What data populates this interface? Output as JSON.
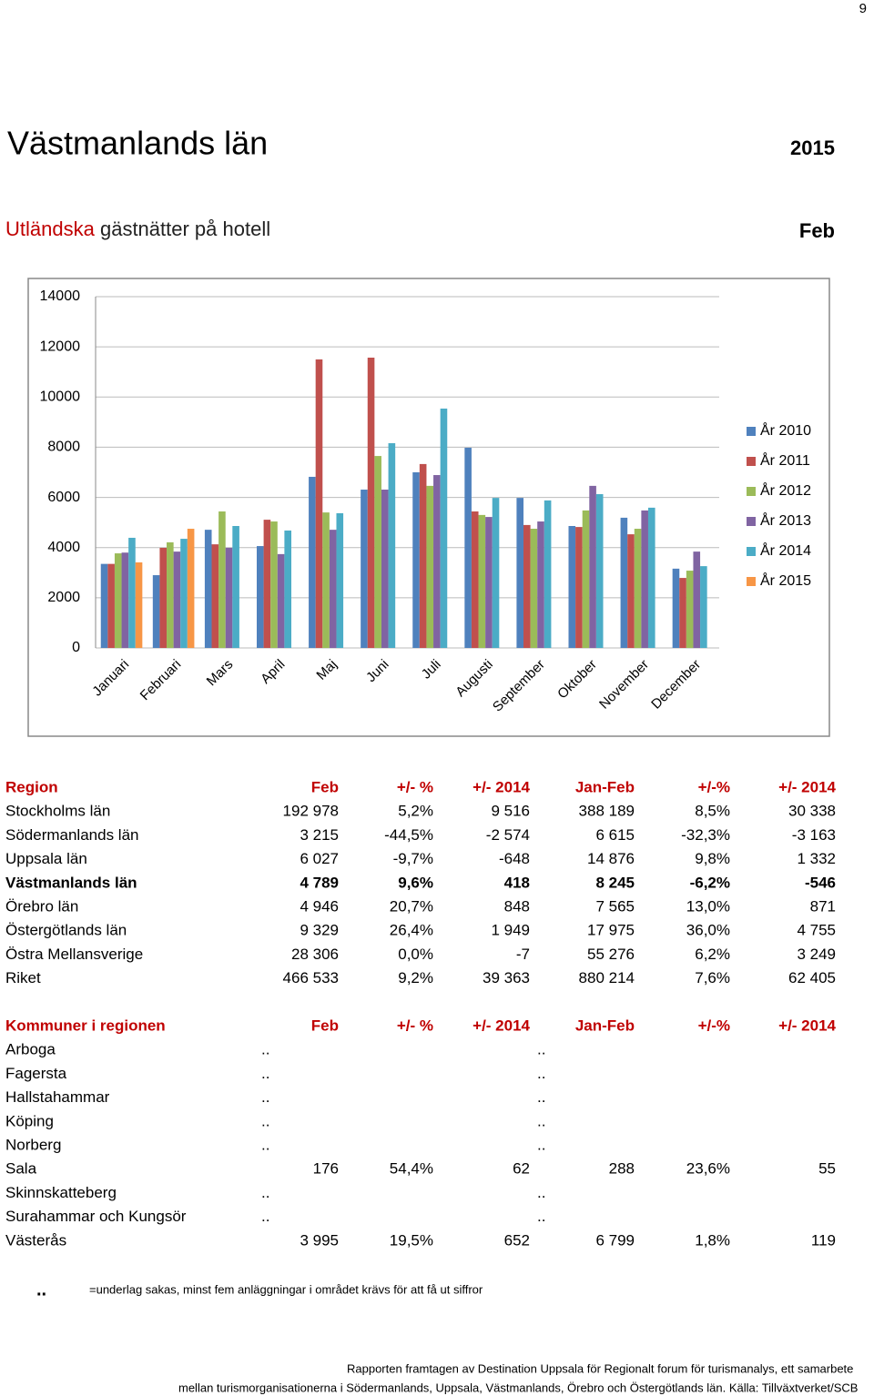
{
  "page_number": "9",
  "header": {
    "title": "Västmanlands län",
    "year": "2015"
  },
  "subtitle": {
    "highlight": "Utländska",
    "rest": "gästnätter på hotell",
    "month": "Feb"
  },
  "chart_data": {
    "type": "bar",
    "categories": [
      "Januari",
      "Februari",
      "Mars",
      "April",
      "Maj",
      "Juni",
      "Juli",
      "Augusti",
      "September",
      "Oktober",
      "November",
      "December"
    ],
    "series": [
      {
        "name": "År 2010",
        "color": "#4f81bd",
        "values": [
          3350,
          2900,
          4710,
          4060,
          6820,
          6310,
          7000,
          7980,
          5980,
          4860,
          5190,
          3160
        ]
      },
      {
        "name": "År 2011",
        "color": "#c0504d",
        "values": [
          3350,
          3990,
          4130,
          5110,
          11500,
          11570,
          7330,
          5440,
          4900,
          4820,
          4530,
          2790
        ]
      },
      {
        "name": "År 2012",
        "color": "#9bbb59",
        "values": [
          3770,
          4210,
          5440,
          5040,
          5400,
          7650,
          6460,
          5300,
          4750,
          5480,
          4750,
          3080
        ]
      },
      {
        "name": "År 2013",
        "color": "#8064a2",
        "values": [
          3800,
          3840,
          3990,
          3740,
          4710,
          6310,
          6890,
          5220,
          5040,
          6460,
          5480,
          3840
        ]
      },
      {
        "name": "År 2014",
        "color": "#4bacc6",
        "values": [
          4390,
          4350,
          4860,
          4680,
          5370,
          8160,
          9540,
          5980,
          5880,
          6130,
          5590,
          3260
        ]
      },
      {
        "name": "År 2015",
        "color": "#f79646",
        "values": [
          3410,
          4750,
          null,
          null,
          null,
          null,
          null,
          null,
          null,
          null,
          null,
          null
        ]
      }
    ],
    "ylim": [
      0,
      14000
    ],
    "yticks": [
      0,
      2000,
      4000,
      6000,
      8000,
      10000,
      12000,
      14000
    ],
    "grid": true,
    "legend": "right"
  },
  "regions": {
    "header": [
      "Region",
      "Feb",
      "+/- %",
      "+/- 2014",
      "Jan-Feb",
      "+/-%",
      "+/- 2014"
    ],
    "rows": [
      {
        "name": "Stockholms län",
        "cells": [
          "192 978",
          "5,2%",
          "9 516",
          "388 189",
          "8,5%",
          "30 338"
        ]
      },
      {
        "name": "Södermanlands län",
        "cells": [
          "3 215",
          "-44,5%",
          "-2 574",
          "6 615",
          "-32,3%",
          "-3 163"
        ]
      },
      {
        "name": "Uppsala län",
        "cells": [
          "6 027",
          "-9,7%",
          "-648",
          "14 876",
          "9,8%",
          "1 332"
        ]
      },
      {
        "name": "Västmanlands län",
        "cells": [
          "4 789",
          "9,6%",
          "418",
          "8 245",
          "-6,2%",
          "-546"
        ],
        "bold": true
      },
      {
        "name": "Örebro län",
        "cells": [
          "4 946",
          "20,7%",
          "848",
          "7 565",
          "13,0%",
          "871"
        ]
      },
      {
        "name": "Östergötlands län",
        "cells": [
          "9 329",
          "26,4%",
          "1 949",
          "17 975",
          "36,0%",
          "4 755"
        ]
      },
      {
        "name": "Östra Mellansverige",
        "cells": [
          "28 306",
          "0,0%",
          "-7",
          "55 276",
          "6,2%",
          "3 249"
        ]
      },
      {
        "name": "Riket",
        "cells": [
          "466 533",
          "9,2%",
          "39 363",
          "880 214",
          "7,6%",
          "62 405"
        ]
      }
    ]
  },
  "municipalities": {
    "header": [
      "Kommuner i regionen",
      "Feb",
      "+/- %",
      "+/- 2014",
      "Jan-Feb",
      "+/-%",
      "+/- 2014"
    ],
    "rows": [
      {
        "name": "Arboga",
        "cells": [
          "..",
          ".."
        ]
      },
      {
        "name": "Fagersta",
        "cells": [
          "..",
          ".."
        ]
      },
      {
        "name": "Hallstahammar",
        "cells": [
          "..",
          ".."
        ]
      },
      {
        "name": "Köping",
        "cells": [
          "..",
          ".."
        ]
      },
      {
        "name": "Norberg",
        "cells": [
          "..",
          ".."
        ]
      },
      {
        "name": "Sala",
        "cells": [
          "176",
          "54,4%",
          "62",
          "288",
          "23,6%",
          "55"
        ]
      },
      {
        "name": "Skinnskatteberg",
        "cells": [
          "..",
          ".."
        ]
      },
      {
        "name": "Surahammar och Kungsör",
        "cells": [
          "..",
          ".."
        ]
      },
      {
        "name": "Västerås",
        "cells": [
          "3 995",
          "19,5%",
          "652",
          "6 799",
          "1,8%",
          "119"
        ]
      }
    ]
  },
  "footnote": {
    "symbol": "..",
    "text": "=underlag sakas, minst fem anläggningar i området krävs för att få ut siffror"
  },
  "footer": [
    "Rapporten framtagen av Destination Uppsala för Regionalt forum för turismanalys, ett samarbete",
    "mellan turismorganisationerna i Södermanlands, Uppsala, Västmanlands, Örebro och Östergötlands län. Källa: Tillväxtverket/SCB"
  ]
}
